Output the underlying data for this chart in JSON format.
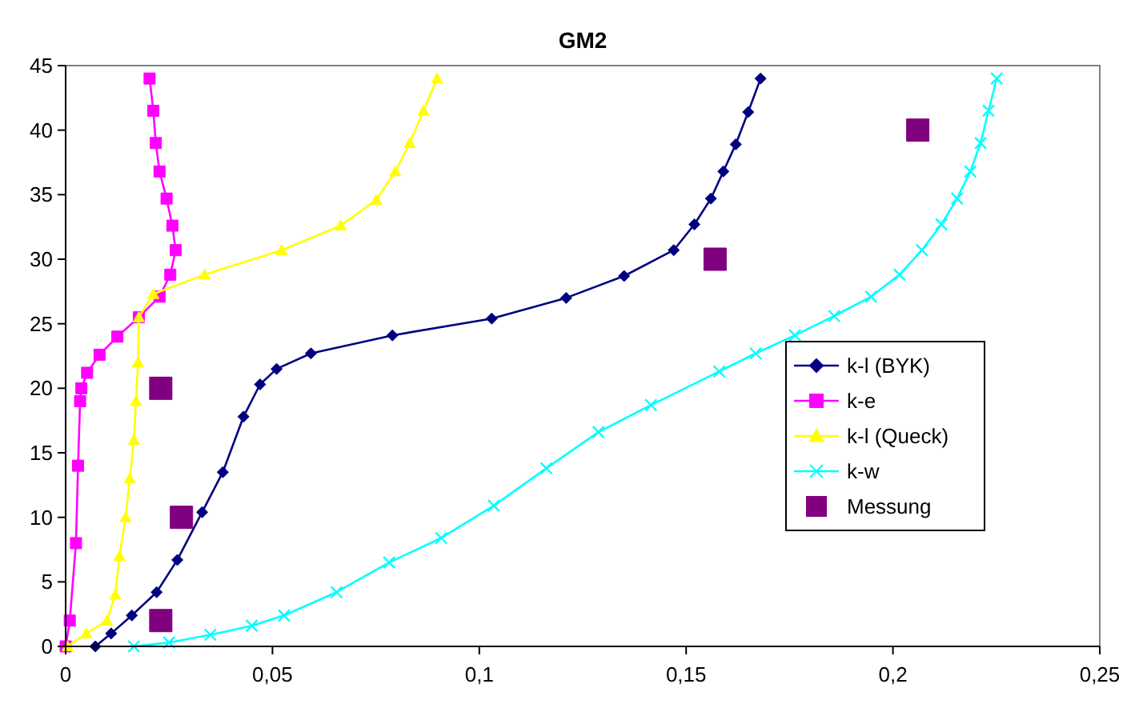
{
  "chart_data": {
    "type": "line",
    "title": "GM2",
    "xlim": [
      0,
      0.25
    ],
    "ylim": [
      0,
      45
    ],
    "xticks": [
      0,
      {
        "value": 0.05,
        "label": "0,05"
      },
      {
        "value": 0.1,
        "label": "0,1"
      },
      {
        "value": 0.15,
        "label": "0,15"
      },
      {
        "value": 0.2,
        "label": "0,2"
      },
      {
        "value": 0.25,
        "label": "0,25"
      }
    ],
    "yticks": [
      0,
      5,
      10,
      15,
      20,
      25,
      30,
      35,
      40,
      45
    ],
    "grid": false,
    "legend": "right",
    "line_style": "solid",
    "series": [
      {
        "name": "k-l (BYK)",
        "color": "#000080",
        "marker": "diamond",
        "x": [
          0.0072,
          0.011,
          0.016,
          0.022,
          0.027,
          0.033,
          0.038,
          0.043,
          0.047,
          0.051,
          0.0593,
          0.079,
          0.103,
          0.121,
          0.135,
          0.147,
          0.152,
          0.156,
          0.159,
          0.162,
          0.165,
          0.168
        ],
        "values": [
          0,
          1,
          2.4,
          4.2,
          6.7,
          10.4,
          13.5,
          17.8,
          20.3,
          21.5,
          22.7,
          24.1,
          25.4,
          27,
          28.7,
          30.7,
          32.7,
          34.7,
          36.8,
          38.9,
          41.4,
          44
        ]
      },
      {
        "name": "k-e",
        "color": "#ff00ff",
        "marker": "square",
        "x": [
          0,
          0.001,
          0.0025,
          0.003,
          0.0035,
          0.0038,
          0.0052,
          0.0082,
          0.0125,
          0.0177,
          0.0227,
          0.0253,
          0.0266,
          0.0258,
          0.0244,
          0.0227,
          0.0218,
          0.0212,
          0.0203
        ],
        "values": [
          0,
          2,
          8,
          14,
          19,
          20,
          21.2,
          22.6,
          24,
          25.5,
          27.1,
          28.8,
          30.7,
          32.6,
          34.7,
          36.8,
          39,
          41.5,
          44
        ]
      },
      {
        "name": "k-l (Queck)",
        "color": "#ffff00",
        "marker": "triangle",
        "x": [
          0.0005,
          0.005,
          0.01,
          0.012,
          0.013,
          0.0145,
          0.0155,
          0.0165,
          0.017,
          0.0175,
          0.0177,
          0.0212,
          0.0336,
          0.0522,
          0.0665,
          0.0751,
          0.0797,
          0.0832,
          0.0865,
          0.0898
        ],
        "values": [
          0,
          1,
          2,
          4,
          7,
          10,
          13,
          16,
          19,
          22,
          25.5,
          27.3,
          28.8,
          30.7,
          32.6,
          34.6,
          36.8,
          39,
          41.5,
          44
        ]
      },
      {
        "name": "k-w",
        "color": "#00ffff",
        "marker": "cross",
        "x": [
          0.0165,
          0.025,
          0.035,
          0.045,
          0.0528,
          0.0655,
          0.0782,
          0.0908,
          0.1035,
          0.1162,
          0.1288,
          0.1415,
          0.158,
          0.1668,
          0.1763,
          0.1858,
          0.1947,
          0.2016,
          0.207,
          0.2117,
          0.2155,
          0.2187,
          0.2212,
          0.2231,
          0.2251
        ],
        "values": [
          0,
          0.3,
          0.9,
          1.6,
          2.4,
          4.2,
          6.5,
          8.4,
          10.9,
          13.8,
          16.6,
          18.7,
          21.3,
          22.7,
          24.1,
          25.6,
          27.1,
          28.8,
          30.7,
          32.7,
          34.7,
          36.8,
          39,
          41.5,
          44
        ]
      },
      {
        "name": "Messung",
        "color": "#800080",
        "type": "scatter",
        "marker": "square",
        "x": [
          0.023,
          0.028,
          0.023,
          0.157,
          0.206
        ],
        "values": [
          2,
          10,
          20,
          30,
          40
        ]
      }
    ]
  }
}
